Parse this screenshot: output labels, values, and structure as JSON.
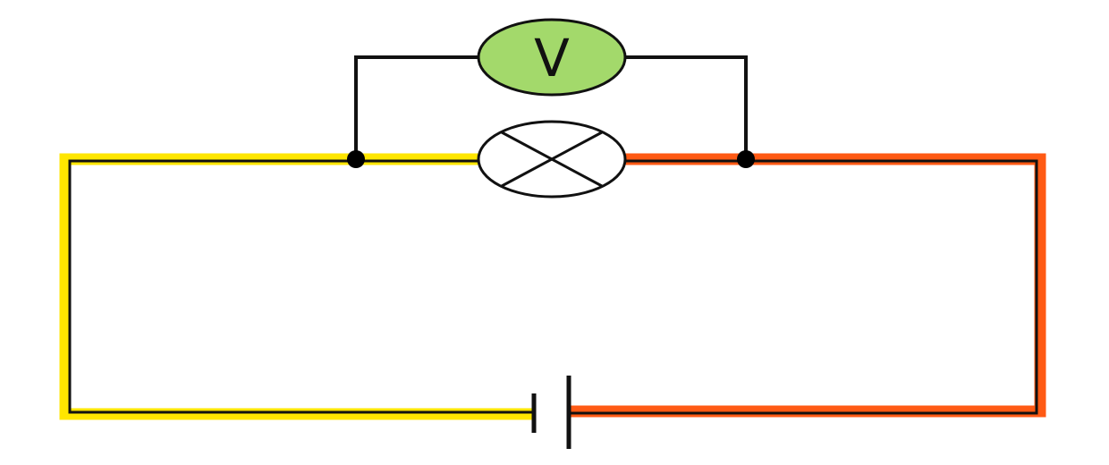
{
  "diagram": {
    "type": "circuit-schematic",
    "components": [
      {
        "kind": "cell",
        "name": "battery-cell"
      },
      {
        "kind": "lamp",
        "name": "bulb"
      },
      {
        "kind": "voltmeter",
        "name": "voltmeter",
        "label": "V"
      }
    ],
    "colors": {
      "background": "#ffffff",
      "wire_black": "#111111",
      "negative_side_highlight": "#ffe600",
      "positive_side_highlight": "#ff5a14",
      "voltmeter_fill": "#a3d96b",
      "lamp_fill": "#ffffff",
      "junction": "#000000"
    }
  }
}
